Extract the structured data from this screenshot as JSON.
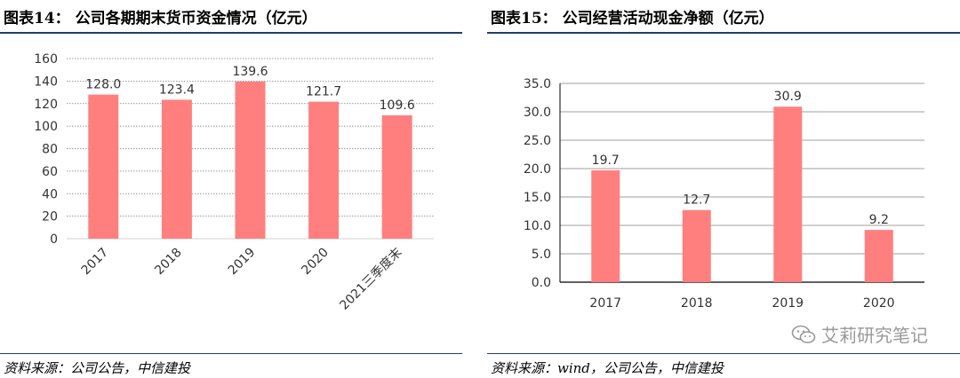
{
  "left": {
    "title_prefix": "图表",
    "title_num": "14",
    "title_text": "： 公司各期期末货币资金情况（亿元）",
    "source": "资料来源：公司公告，中信建投"
  },
  "right": {
    "title_prefix": "图表",
    "title_num": "15",
    "title_text": "： 公司经营活动现金净额（亿元）",
    "source": "资料来源：wind，公司公告，中信建投"
  },
  "watermark": {
    "text": "艾莉研究笔记",
    "icon": "wechat-icon"
  },
  "colors": {
    "bar": "#ff7f7f",
    "rule": "#1f3f6e",
    "grid": "#7f7f7f",
    "axis": "#d9d9d9"
  },
  "chart_data": [
    {
      "type": "bar",
      "title": "公司各期期末货币资金情况（亿元）",
      "categories": [
        "2017",
        "2018",
        "2019",
        "2020",
        "2021三季度末"
      ],
      "values": [
        128.0,
        123.4,
        139.6,
        121.7,
        109.6
      ],
      "data_labels": [
        "128.0",
        "123.4",
        "139.6",
        "121.7",
        "109.6"
      ],
      "ylim": [
        0,
        160
      ],
      "yticks": [
        "0",
        "20",
        "40",
        "60",
        "80",
        "100",
        "120",
        "140",
        "160"
      ],
      "grid": true,
      "grid_style": "dotted",
      "xtick_rotation": -45
    },
    {
      "type": "bar",
      "title": "公司经营活动现金净额（亿元）",
      "categories": [
        "2017",
        "2018",
        "2019",
        "2020"
      ],
      "values": [
        19.7,
        12.7,
        30.9,
        9.2
      ],
      "data_labels": [
        "19.7",
        "12.7",
        "30.9",
        "9.2"
      ],
      "ylim": [
        0,
        35
      ],
      "yticks": [
        "0.0",
        "5.0",
        "10.0",
        "15.0",
        "20.0",
        "25.0",
        "30.0",
        "35.0"
      ],
      "grid": true,
      "grid_style": "solid"
    }
  ]
}
